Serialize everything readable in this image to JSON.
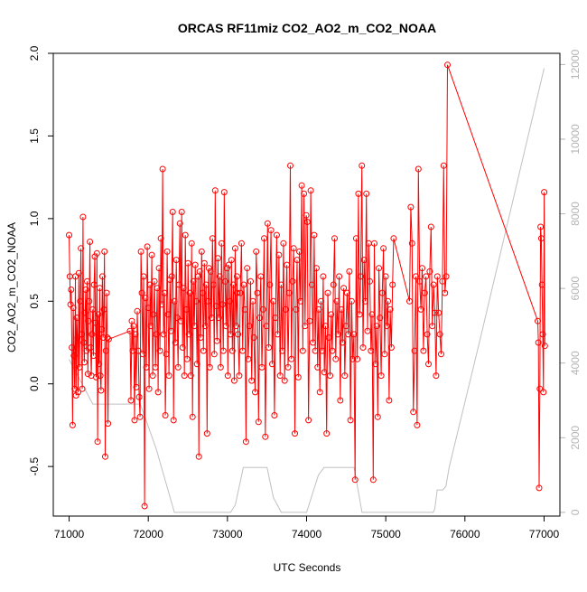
{
  "chart_data": {
    "type": "line",
    "title": "ORCAS RF11miz CO2_AO2_m_CO2_NOAA",
    "xlabel": "UTC Seconds",
    "ylabel": "CO2_AO2_m_CO2_NOAA",
    "xlim": [
      70800,
      77200
    ],
    "ylim": [
      -0.8,
      2.0
    ],
    "y2lim": [
      -100,
      12300
    ],
    "x_ticks": [
      71000,
      72000,
      73000,
      74000,
      75000,
      76000,
      77000
    ],
    "x_tick_labels": [
      "71000",
      "72000",
      "73000",
      "74000",
      "75000",
      "76000",
      "77000"
    ],
    "y_ticks": [
      -0.5,
      0.0,
      0.5,
      1.0,
      1.5,
      2.0
    ],
    "y_tick_labels": [
      "-0.5",
      "0.0",
      "0.5",
      "1.0",
      "1.5",
      "2.0"
    ],
    "y2_ticks": [
      0,
      2000,
      4000,
      6000,
      8000,
      10000,
      12000
    ],
    "y2_tick_labels": [
      "0",
      "2000",
      "4000",
      "6000",
      "8000",
      "10000",
      "12000"
    ],
    "colors": {
      "series": "#ff0000",
      "altitude": "#c0c0c0",
      "axis": "#000000",
      "right_axis": "#b4b4b4"
    },
    "series": [
      {
        "name": "CO2_AO2_m_CO2_NOAA",
        "axis": "left",
        "style": "line+circles",
        "segments": [
          {
            "x_start": 71000,
            "x_end": 71500,
            "values": [
              0.9,
              0.65,
              0.48,
              0.57,
              0.22,
              -0.25,
              0.46,
              0.17,
              -0.03,
              0.65,
              -0.07,
              0.4,
              0.28,
              -0.05,
              0.67,
              0.1,
              0.5,
              0.82,
              0.3,
              -0.03,
              1.01,
              0.25,
              0.13,
              0.43,
              0.57,
              0.2,
              0.62,
              0.06,
              0.38,
              0.5,
              0.86,
              0.22,
              0.05,
              0.3,
              0.45,
              0.17,
              0.6,
              0.77,
              0.37,
              0.04,
              0.79,
              -0.35,
              0.42,
              0.12,
              0.58,
              0.05,
              -0.04,
              0.33,
              0.65,
              0.28,
              0.45,
              0.8,
              -0.44,
              0.2,
              0.55,
              0.28,
              -0.24,
              0.27
            ]
          },
          {
            "x_start": 71770,
            "x_end": 73120,
            "values": [
              0.32,
              -0.1,
              0.38,
              0.2,
              0.35,
              -0.22,
              0.3,
              -0.02,
              0.44,
              0.2,
              -0.08,
              -0.2,
              0.8,
              0.55,
              0.18,
              0.65,
              -0.74,
              0.52,
              0.1,
              0.83,
              0.46,
              -0.03,
              0.6,
              0.35,
              0.78,
              0.05,
              0.42,
              0.62,
              0.1,
              0.3,
              0.58,
              -0.05,
              0.7,
              0.2,
              0.88,
              0.48,
              1.3,
              0.3,
              0.55,
              -0.19,
              0.18,
              0.8,
              0.42,
              0.05,
              0.63,
              0.32,
              0.65,
              1.04,
              -0.22,
              0.5,
              0.25,
              0.75,
              0.4,
              0.1,
              0.6,
              0.97,
              0.38,
              1.04,
              0.22,
              0.58,
              0.05,
              0.9,
              0.45,
              0.15,
              0.73,
              0.3,
              0.55,
              0.05,
              0.85,
              -0.2,
              0.62,
              0.35,
              0.72,
              0.5,
              0.12,
              0.65,
              -0.44,
              0.68,
              0.28,
              0.8,
              0.55,
              0.2,
              0.73,
              0.35,
              0.6,
              -0.3,
              0.5,
              0.7,
              0.1,
              0.68,
              0.4,
              0.88,
              0.6,
              0.18,
              1.17,
              0.47,
              0.26,
              0.76,
              0.4,
              0.65,
              0.1,
              0.85,
              0.48,
              0.2,
              1.16,
              0.62,
              0.35,
              0.7,
              0.05,
              0.72,
              0.5,
              0.3,
              0.75,
              0.2,
              0.6,
              0.02,
              0.82,
              0.35,
              0.55
            ]
          },
          {
            "x_start": 73120,
            "x_end": 75100,
            "values": [
              0.65,
              0.3,
              0.05,
              0.55,
              0.85,
              0.2,
              0.6,
              0.45,
              -0.35,
              0.7,
              0.15,
              0.35,
              0.62,
              0.02,
              0.5,
              0.28,
              -0.05,
              0.8,
              0.55,
              -0.23,
              0.4,
              0.65,
              0.1,
              0.45,
              0.88,
              -0.32,
              0.35,
              0.97,
              0.22,
              0.6,
              0.93,
              0.12,
              0.5,
              -0.19,
              0.4,
              0.9,
              0.3,
              0.78,
              0.05,
              0.6,
              0.2,
              0.85,
              0.02,
              0.45,
              0.72,
              0.1,
              0.55,
              1.32,
              0.15,
              0.62,
              0.82,
              -0.3,
              0.45,
              0.75,
              0.04,
              0.8,
              0.5,
              1.2,
              0.2,
              1.15,
              0.35,
              1.02,
              0.98,
              -0.22,
              0.38,
              1.17,
              0.6,
              0.25,
              0.9,
              0.2,
              0.7,
              0.1,
              0.45,
              -0.05,
              0.5,
              0.2,
              0.65,
              0.07,
              0.35,
              -0.3,
              0.55,
              0.28,
              0.05,
              0.42,
              0.2,
              0.6,
              0.88,
              0.15,
              0.5,
              0.3,
              0.65,
              -0.1,
              0.45,
              0.25,
              0.58,
              0.05,
              0.35,
              0.55,
              0.3,
              0.68,
              -0.22,
              0.5,
              0.15,
              0.3,
              -0.58,
              0.88,
              0.15,
              1.15,
              0.42,
              0.65,
              1.32,
              0.22,
              0.75,
              0.5,
              1.15,
              0.32,
              0.85,
              0.62,
              0.2,
              0.42,
              -0.58,
              0.85,
              0.12,
              0.35,
              -0.2,
              0.7,
              0.4,
              0.05,
              0.55,
              0.82,
              0.18,
              0.65,
              0.35,
              0.5,
              -0.1,
              0.45,
              0.22,
              0.6,
              0.88
            ]
          },
          {
            "x_start": 75300,
            "x_end": 75780,
            "values": [
              0.5,
              1.07,
              0.85,
              -0.17,
              0.2,
              0.65,
              -0.25,
              1.3,
              0.62,
              0.45,
              0.7,
              0.2,
              0.55,
              0.65,
              0.3,
              0.12,
              0.68,
              0.95,
              0.35,
              0.6,
              0.43,
              0.05,
              0.65,
              0.43,
              0.3,
              0.18,
              0.62,
              1.32,
              0.55,
              0.65,
              1.93
            ]
          },
          {
            "x_start": 76920,
            "x_end": 77010,
            "values": [
              0.38,
              0.25,
              -0.63,
              -0.03,
              0.95,
              0.88,
              0.6,
              0.3,
              -0.05,
              1.16,
              0.23
            ]
          }
        ]
      },
      {
        "name": "Altitude",
        "axis": "right",
        "style": "line",
        "x": [
          71000,
          71150,
          71300,
          71600,
          71900,
          72100,
          72330,
          73040,
          73100,
          73200,
          73500,
          73580,
          73680,
          74000,
          74150,
          74220,
          74600,
          74700,
          75100,
          75200,
          75450,
          75600,
          75620,
          75650,
          75720,
          75760,
          75800,
          76200,
          76600,
          77000
        ],
        "y": [
          4100,
          3500,
          2900,
          2900,
          2900,
          1700,
          0,
          0,
          200,
          1200,
          1200,
          400,
          0,
          0,
          1000,
          1200,
          1200,
          0,
          0,
          0,
          0,
          0,
          100,
          600,
          600,
          700,
          1200,
          4700,
          8300,
          11900
        ]
      }
    ]
  }
}
